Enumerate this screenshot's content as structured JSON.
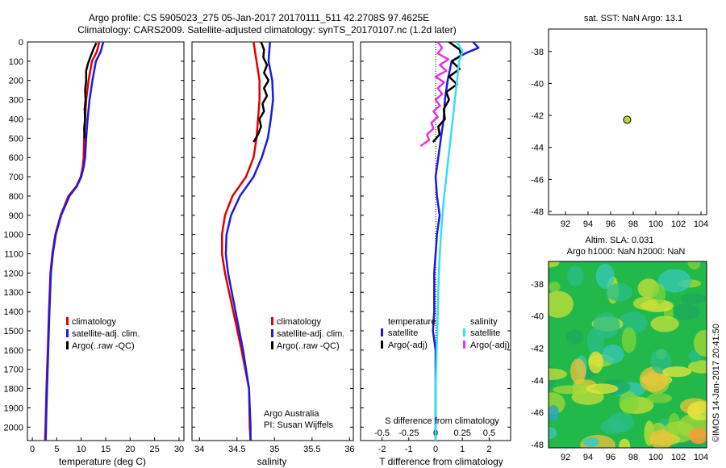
{
  "title": {
    "line1": "Argo profile: CS 5905023_275 05-Jan-2017 20170111_511 42.2708S 97.4625E",
    "line2": "Climatology: CARS2009. Satellite-adjusted climatology: synTS_20170107.nc (1.2d later)"
  },
  "colors": {
    "red": "#e00000",
    "blue": "#1a1ae6",
    "black": "#000000",
    "cyan": "#33e0f0",
    "magenta": "#e633e6",
    "yellow_dot": "#b8d63a"
  },
  "panel_sst": {
    "title": "sat. SST: NaN Argo: 13.1"
  },
  "panel_sla": {
    "title1": "Altim. SLA: 0.031",
    "title2": "Argo h1000: NaN h2000: NaN"
  },
  "stamp": "©IMOS 14-Jan-2017 20:41:50",
  "annotation": {
    "line1": "Argo Australia",
    "line2": "PI: Susan Wijffels"
  },
  "legend_temp": [
    "climatology",
    "satellite-adj. clim.",
    "Argo(..raw -QC)"
  ],
  "legend_sal": [
    "climatology",
    "satellite-adj. clim.",
    "Argo(..raw -QC)"
  ],
  "legend_diff": {
    "temperature_head": "temperature",
    "salinity_head": "salinity",
    "temp_items": [
      "satellite",
      "Argo(-adj)"
    ],
    "sal_items": [
      "satellite",
      "Argo(-adj)"
    ]
  },
  "chart_data": [
    {
      "type": "line",
      "id": "temperature",
      "xlabel": "temperature (deg C)",
      "ylabel": "",
      "xlim": [
        -1,
        31
      ],
      "ylim": [
        2070,
        0
      ],
      "y_reversed": true,
      "xticks": [
        0,
        5,
        10,
        15,
        20,
        25,
        30
      ],
      "yticks": [
        0,
        100,
        200,
        300,
        400,
        500,
        600,
        700,
        800,
        900,
        1000,
        1100,
        1200,
        1300,
        1400,
        1500,
        1600,
        1700,
        1800,
        1900,
        2000
      ],
      "series": [
        {
          "name": "climatology",
          "color": "red",
          "x": [
            13.7,
            13.2,
            12.2,
            11.5,
            11.0,
            10.8,
            10.6,
            10.5,
            10.3,
            9.9,
            9.0,
            7.4,
            5.8,
            4.7,
            4.1,
            3.7,
            3.4,
            3.15,
            2.9,
            2.7,
            2.6
          ],
          "y": [
            0,
            50,
            100,
            200,
            300,
            400,
            500,
            600,
            650,
            700,
            750,
            800,
            900,
            1000,
            1100,
            1200,
            1400,
            1600,
            1800,
            2000,
            2070
          ]
        },
        {
          "name": "satellite-adj. clim.",
          "color": "blue",
          "x": [
            14.5,
            14.0,
            13.0,
            12.3,
            11.7,
            11.3,
            11.0,
            10.8,
            10.5,
            10.0,
            9.1,
            7.6,
            5.9,
            4.8,
            4.2,
            3.8,
            3.5,
            3.25,
            3.0,
            2.8,
            2.75
          ],
          "y": [
            0,
            50,
            100,
            200,
            300,
            400,
            500,
            600,
            650,
            700,
            750,
            800,
            900,
            1000,
            1100,
            1200,
            1400,
            1600,
            1800,
            2000,
            2070
          ]
        },
        {
          "name": "Argo(..raw -QC)",
          "color": "black",
          "x": [
            13.1,
            12.6,
            12.0,
            11.4,
            11.0,
            11.0,
            10.8,
            10.9,
            10.7,
            10.8,
            10.6,
            10.7
          ],
          "y": [
            5,
            30,
            70,
            110,
            150,
            200,
            250,
            300,
            350,
            400,
            450,
            500
          ]
        }
      ]
    },
    {
      "type": "line",
      "id": "salinity",
      "xlabel": "salinity",
      "ylabel": "",
      "xlim": [
        33.9,
        36.05
      ],
      "ylim": [
        2070,
        0
      ],
      "y_reversed": true,
      "xticks": [
        34,
        34.5,
        35,
        35.5,
        36
      ],
      "series": [
        {
          "name": "climatology",
          "color": "red",
          "x": [
            34.72,
            34.76,
            34.8,
            34.8,
            34.78,
            34.76,
            34.72,
            34.62,
            34.44,
            34.34,
            34.3,
            34.3,
            34.34,
            34.45,
            34.56,
            34.66,
            34.67,
            34.68
          ],
          "y": [
            0,
            100,
            200,
            300,
            400,
            500,
            600,
            700,
            800,
            900,
            1000,
            1100,
            1200,
            1400,
            1600,
            1800,
            2000,
            2070
          ]
        },
        {
          "name": "satellite-adj. clim.",
          "color": "blue",
          "x": [
            34.94,
            34.92,
            34.97,
            34.98,
            34.95,
            34.91,
            34.83,
            34.72,
            34.54,
            34.42,
            34.36,
            34.35,
            34.38,
            34.48,
            34.58,
            34.66,
            34.68,
            34.68
          ],
          "y": [
            0,
            100,
            200,
            300,
            400,
            500,
            600,
            700,
            800,
            900,
            1000,
            1100,
            1200,
            1400,
            1600,
            1800,
            2000,
            2070
          ]
        },
        {
          "name": "Argo(..raw -QC)",
          "color": "black",
          "x": [
            34.82,
            34.86,
            34.85,
            34.9,
            34.86,
            34.92,
            34.86,
            34.9,
            34.84,
            34.86,
            34.8,
            34.82,
            34.78,
            34.72
          ],
          "y": [
            0,
            40,
            80,
            120,
            160,
            200,
            240,
            280,
            320,
            360,
            400,
            440,
            480,
            520
          ]
        }
      ]
    },
    {
      "type": "line",
      "id": "difference",
      "xlabel": "T difference from climatology",
      "xlabel_top": "S difference from climatology",
      "xlim": [
        -2.8,
        2.8
      ],
      "xticks": [
        -2,
        -1,
        0,
        1,
        2
      ],
      "xticks_top": [
        -0.5,
        -0.25,
        0,
        0.25,
        0.5
      ],
      "xlim_top": [
        -0.7,
        0.7
      ],
      "ylim": [
        2070,
        0
      ],
      "y_reversed": true,
      "zero_line": true,
      "series": [
        {
          "name": "temperature satellite",
          "color": "blue",
          "x": [
            1.4,
            1.6,
            1.1,
            0.6,
            0.45,
            0.35,
            0.3,
            0.2,
            0.1,
            0.0,
            0.05,
            0.15,
            0.05,
            0.0,
            -0.05,
            -0.05,
            -0.1,
            0.0,
            0.0,
            0.0
          ],
          "y": [
            0,
            30,
            60,
            100,
            200,
            300,
            400,
            500,
            600,
            700,
            800,
            900,
            1000,
            1100,
            1200,
            1400,
            1500,
            1600,
            1800,
            2070
          ]
        },
        {
          "name": "temperature Argo(-adj)",
          "color": "black",
          "x": [
            0.5,
            0.7,
            0.9,
            0.95,
            0.6,
            0.9,
            0.5,
            0.8,
            0.4,
            0.5,
            0.3,
            0.35,
            0.1,
            0.15,
            -0.1
          ],
          "y": [
            0,
            20,
            40,
            70,
            100,
            140,
            180,
            220,
            260,
            300,
            350,
            400,
            440,
            480,
            520
          ]
        },
        {
          "name": "salinity satellite",
          "color": "cyan",
          "x": [
            0.2,
            0.25,
            0.22,
            0.2,
            0.18,
            0.16,
            0.14,
            0.12,
            0.1,
            0.08,
            0.05,
            0.03,
            0.02,
            0.01,
            0.0,
            0.0
          ],
          "y": [
            0,
            50,
            100,
            200,
            300,
            400,
            500,
            600,
            700,
            800,
            1000,
            1200,
            1400,
            1600,
            1800,
            2070
          ]
        },
        {
          "name": "salinity Argo(-adj)",
          "color": "magenta",
          "x": [
            0.02,
            0.06,
            0.02,
            0.12,
            0.04,
            0.1,
            0.0,
            0.08,
            0.02,
            0.06,
            0.0,
            0.04,
            -0.02,
            0.02,
            -0.04,
            -0.02,
            -0.08,
            -0.06,
            -0.14
          ],
          "y": [
            0,
            30,
            60,
            90,
            120,
            150,
            180,
            210,
            240,
            270,
            300,
            330,
            360,
            390,
            420,
            450,
            480,
            510,
            540
          ]
        }
      ]
    },
    {
      "type": "scatter",
      "id": "sst_map",
      "xlim": [
        90.5,
        104.5
      ],
      "ylim": [
        -48.2,
        -36.6
      ],
      "xticks": [
        92,
        94,
        96,
        98,
        100,
        102,
        104
      ],
      "yticks": [
        -38,
        -40,
        -42,
        -44,
        -46,
        -48
      ],
      "points": [
        {
          "x": 97.46,
          "y": -42.27
        }
      ]
    },
    {
      "type": "heatmap",
      "id": "sla_map",
      "xlim": [
        90.5,
        104.5
      ],
      "ylim": [
        -48.2,
        -36.6
      ],
      "xticks": [
        92,
        94,
        96,
        98,
        100,
        102,
        104
      ],
      "yticks": [
        -38,
        -40,
        -42,
        -44,
        -46,
        -48
      ]
    }
  ]
}
